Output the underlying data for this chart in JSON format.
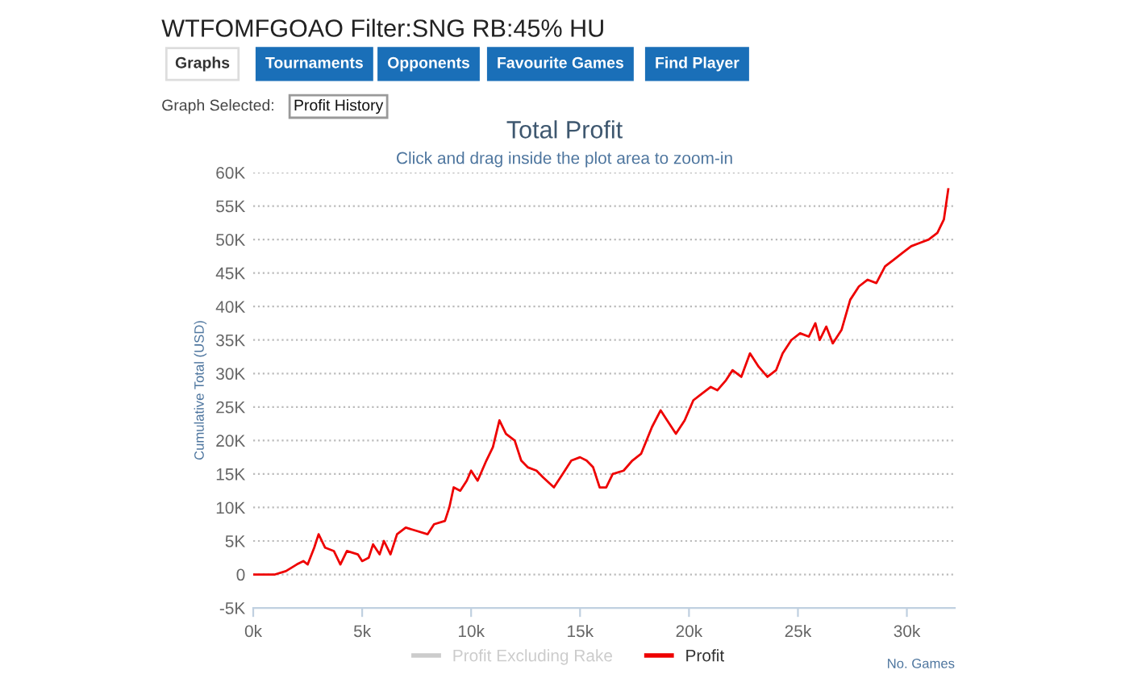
{
  "chart_data": {
    "type": "line",
    "title": "Total Profit",
    "subtitle": "Click and drag inside the plot area to zoom-in",
    "xlabel": "No. Games",
    "ylabel": "Cumulative Total (USD)",
    "annotations": [
      "WTFOMFGOAO Filter:SNG RB:45% HU",
      "Graphs",
      "Tournaments",
      "Opponents",
      "Favourite Games",
      "Find Player",
      "Graph Selected:",
      "Profit History"
    ],
    "series": [
      {
        "name": "Profit Excluding Rake",
        "color": "#cccccc"
      },
      {
        "name": "Profit",
        "color": "#ee0000",
        "x": [
          0,
          500,
          1000,
          1500,
          2000,
          2300,
          2500,
          2800,
          3000,
          3300,
          3700,
          4000,
          4300,
          4800,
          5000,
          5300,
          5500,
          5800,
          6000,
          6300,
          6600,
          7000,
          7500,
          8000,
          8300,
          8800,
          9000,
          9200,
          9500,
          9800,
          10000,
          10300,
          10700,
          11000,
          11300,
          11600,
          12000,
          12300,
          12600,
          13000,
          13300,
          13800,
          14200,
          14600,
          15000,
          15300,
          15600,
          15900,
          16200,
          16500,
          17000,
          17400,
          17800,
          18300,
          18700,
          19000,
          19400,
          19800,
          20200,
          20600,
          21000,
          21300,
          21700,
          22000,
          22400,
          22800,
          23200,
          23600,
          24000,
          24300,
          24700,
          25100,
          25500,
          25800,
          26000,
          26300,
          26600,
          27000,
          27400,
          27800,
          28200,
          28600,
          29000,
          29400,
          29800,
          30200,
          30600,
          31000,
          31400,
          31700,
          31900
        ],
        "values": [
          0,
          0,
          0,
          500,
          1500,
          2000,
          1500,
          4000,
          6000,
          4000,
          3500,
          1500,
          3500,
          3000,
          2000,
          2500,
          4500,
          3000,
          5000,
          3000,
          6000,
          7000,
          6500,
          6000,
          7500,
          8000,
          10000,
          13000,
          12500,
          14000,
          15500,
          14000,
          17000,
          19000,
          23000,
          21000,
          20000,
          17000,
          16000,
          15500,
          14500,
          13000,
          15000,
          17000,
          17500,
          17000,
          16000,
          13000,
          13000,
          15000,
          15500,
          17000,
          18000,
          22000,
          24500,
          23000,
          21000,
          23000,
          26000,
          27000,
          28000,
          27500,
          29000,
          30500,
          29500,
          33000,
          31000,
          29500,
          30500,
          33000,
          35000,
          36000,
          35500,
          37500,
          35000,
          37000,
          34500,
          36500,
          41000,
          43000,
          44000,
          43500,
          46000,
          47000,
          48000,
          49000,
          49500,
          50000,
          51000,
          53000,
          57500
        ]
      }
    ],
    "xlim": [
      0,
      32200
    ],
    "ylim": [
      -5000,
      60000
    ],
    "xticks": [
      {
        "value": 0,
        "label": "0k"
      },
      {
        "value": 5000,
        "label": "5k"
      },
      {
        "value": 10000,
        "label": "10k"
      },
      {
        "value": 15000,
        "label": "15k"
      },
      {
        "value": 20000,
        "label": "20k"
      },
      {
        "value": 25000,
        "label": "25k"
      },
      {
        "value": 30000,
        "label": "30k"
      }
    ],
    "yticks": [
      {
        "value": -5000,
        "label": "-5K"
      },
      {
        "value": 0,
        "label": "0"
      },
      {
        "value": 5000,
        "label": "5K"
      },
      {
        "value": 10000,
        "label": "10K"
      },
      {
        "value": 15000,
        "label": "15K"
      },
      {
        "value": 20000,
        "label": "20K"
      },
      {
        "value": 25000,
        "label": "25K"
      },
      {
        "value": 30000,
        "label": "30K"
      },
      {
        "value": 35000,
        "label": "35K"
      },
      {
        "value": 40000,
        "label": "40K"
      },
      {
        "value": 45000,
        "label": "45K"
      },
      {
        "value": 50000,
        "label": "50K"
      },
      {
        "value": 55000,
        "label": "55K"
      },
      {
        "value": 60000,
        "label": "60K"
      }
    ],
    "grid": "y",
    "legend": "bottom",
    "marker": "none",
    "line_style": "solid"
  }
}
